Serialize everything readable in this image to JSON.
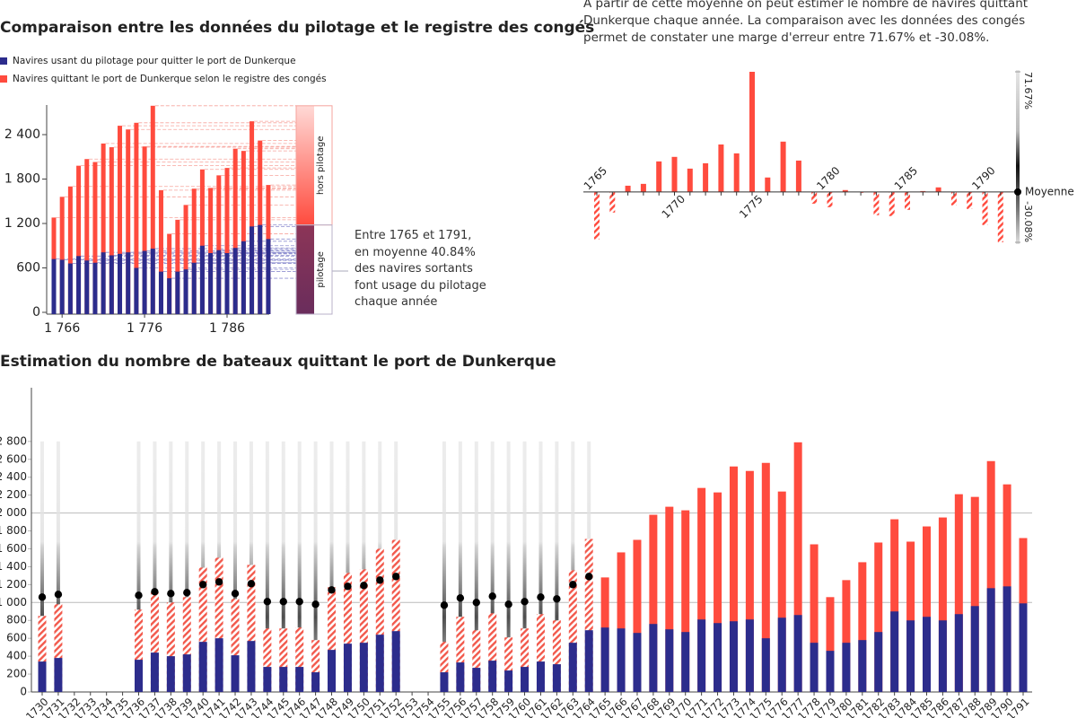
{
  "chart_data": [
    {
      "type": "bar",
      "title": "Comparaison entre les données du pilotage et le registre des congés",
      "categories": [
        null,
        "1 766",
        null,
        null,
        null,
        null,
        null,
        null,
        null,
        null,
        null,
        "1 776",
        null,
        null,
        null,
        null,
        null,
        null,
        null,
        null,
        null,
        "1 786",
        null,
        null,
        null,
        null,
        null
      ],
      "series": [
        {
          "name": "Navires usant du pilotage pour quitter le port de Dunkerque",
          "color": "#2c2c8c",
          "values": [
            720,
            710,
            660,
            760,
            700,
            670,
            810,
            770,
            790,
            810,
            600,
            830,
            860,
            550,
            460,
            550,
            580,
            670,
            900,
            800,
            840,
            800,
            870,
            960,
            1160,
            1180,
            990
          ]
        },
        {
          "name": "Navires quittant le port de Dunkerque selon le registre des congés",
          "color": "#ff4b3e",
          "values": [
            1280,
            1560,
            1700,
            1980,
            2070,
            2030,
            2280,
            2230,
            2520,
            2470,
            2560,
            2240,
            2790,
            1650,
            1060,
            1250,
            1450,
            1670,
            1930,
            1680,
            1850,
            1950,
            2210,
            2180,
            2580,
            2320,
            1720
          ]
        }
      ],
      "ylim": [
        0,
        2800
      ],
      "yticks": [
        0,
        600,
        {
          "value": 1200,
          "label": "1 200"
        },
        {
          "value": 1800,
          "label": "1 800"
        },
        {
          "value": 2400,
          "label": "2 400"
        }
      ],
      "bracket_labels": [
        "hors pilotage",
        "pilotage"
      ],
      "annotation": "Entre 1765 et 1791, en moyenne 40.84% des navires sortants font usage du pilotage chaque année"
    },
    {
      "type": "deviation",
      "annotation": "À partir de cette moyenne on peut estimer le nombre de navires quittant Dunkerque chaque année. La comparaison avec les données des congés permet de constater une marge d'erreur entre 71.67% et -30.08%.",
      "categories": [
        "1765",
        null,
        null,
        null,
        null,
        "1770",
        null,
        null,
        null,
        null,
        "1775",
        null,
        null,
        null,
        null,
        "1780",
        null,
        null,
        null,
        null,
        "1785",
        null,
        null,
        null,
        null,
        "1790",
        null
      ],
      "values": [
        -28.3,
        -12.3,
        3.7,
        4.8,
        18.2,
        20.9,
        13.9,
        17.1,
        28.3,
        23,
        71.67,
        8.6,
        30,
        18.7,
        -7,
        -9.1,
        1.1,
        -0.5,
        -13.9,
        -14.4,
        -10.7,
        0.5,
        2.7,
        -8,
        -10.2,
        -19.8,
        -30.08
      ],
      "color": "#ff4b3e",
      "negative_style": "hatched",
      "ylim": [
        -30.08,
        71.67
      ],
      "yticks": [
        {
          "value": 71.67,
          "label": "71.67%"
        },
        {
          "value": 0,
          "label": "Moyenne"
        },
        {
          "value": -30.08,
          "label": "-30.08%"
        }
      ]
    },
    {
      "type": "bar",
      "title": "Estimation du nombre de bateaux quittant le port de Dunkerque",
      "categories": [
        "1730",
        "1731",
        "1732",
        "1733",
        "1734",
        "1735",
        "1736",
        "1737",
        "1738",
        "1739",
        "1740",
        "1741",
        "1742",
        "1743",
        "1744",
        "1745",
        "1746",
        "1747",
        "1748",
        "1749",
        "1750",
        "1751",
        "1752",
        "1753",
        "1754",
        "1755",
        "1756",
        "1757",
        "1758",
        "1759",
        "1760",
        "1761",
        "1762",
        "1763",
        "1764",
        "1765",
        "1766",
        "1767",
        "1768",
        "1769",
        "1770",
        "1771",
        "1772",
        "1773",
        "1774",
        "1775",
        "1776",
        "1777",
        "1778",
        "1779",
        "1780",
        "1781",
        "1782",
        "1783",
        "1784",
        "1785",
        "1786",
        "1787",
        "1788",
        "1789",
        "1790",
        "1791"
      ],
      "series": [
        {
          "style": "hatched",
          "color": "#f2594c",
          "values": [
            850,
            980,
            null,
            null,
            null,
            null,
            920,
            1110,
            1000,
            1060,
            1390,
            1500,
            1040,
            1420,
            710,
            710,
            720,
            580,
            1170,
            1330,
            1370,
            1600,
            1700,
            null,
            null,
            560,
            840,
            690,
            880,
            610,
            710,
            870,
            800,
            1360,
            1710,
            null,
            null,
            null,
            null,
            null,
            null,
            null,
            null,
            null,
            null,
            null,
            null,
            null,
            null,
            null,
            null,
            null,
            null,
            null,
            null,
            null,
            null,
            null,
            null,
            null,
            null,
            null
          ]
        },
        {
          "style": "bar",
          "color": "#ff4b3e",
          "values": [
            null,
            null,
            null,
            null,
            null,
            null,
            null,
            null,
            null,
            null,
            null,
            null,
            null,
            null,
            null,
            null,
            null,
            null,
            null,
            null,
            null,
            null,
            null,
            null,
            null,
            null,
            null,
            null,
            null,
            null,
            null,
            null,
            null,
            null,
            null,
            1280,
            1560,
            1700,
            1980,
            2070,
            2030,
            2280,
            2230,
            2520,
            2470,
            2560,
            2240,
            2790,
            1650,
            1060,
            1250,
            1450,
            1670,
            1930,
            1680,
            1850,
            1950,
            2210,
            2180,
            2580,
            2320,
            1720
          ]
        },
        {
          "style": "bar",
          "color": "#2c2c8c",
          "values": [
            340,
            380,
            null,
            null,
            null,
            null,
            360,
            440,
            400,
            420,
            560,
            600,
            410,
            570,
            280,
            280,
            280,
            220,
            470,
            540,
            550,
            640,
            680,
            null,
            null,
            220,
            330,
            270,
            350,
            240,
            280,
            340,
            310,
            550,
            690,
            720,
            710,
            660,
            760,
            700,
            670,
            810,
            770,
            790,
            810,
            600,
            830,
            860,
            550,
            460,
            550,
            580,
            670,
            900,
            800,
            840,
            800,
            870,
            960,
            1160,
            1180,
            990
          ]
        },
        {
          "style": "dot",
          "color": "#000000",
          "values": [
            1060,
            1090,
            null,
            null,
            null,
            null,
            1080,
            1120,
            1100,
            1110,
            1200,
            1230,
            1100,
            1210,
            1010,
            1010,
            1010,
            980,
            1140,
            1180,
            1190,
            1250,
            1290,
            null,
            null,
            970,
            1050,
            1000,
            1070,
            980,
            1010,
            1060,
            1040,
            1200,
            1290,
            null,
            null,
            null,
            null,
            null,
            null,
            null,
            null,
            null,
            null,
            null,
            null,
            null,
            null,
            null,
            null,
            null,
            null,
            null,
            null,
            null,
            null,
            null,
            null,
            null,
            null,
            null
          ]
        }
      ],
      "ylim": [
        0,
        3400
      ],
      "yticks": [
        0,
        200,
        400,
        600,
        800,
        {
          "value": 1000,
          "label": "1 000"
        },
        {
          "value": 1200,
          "label": "1 200"
        },
        {
          "value": 1400,
          "label": "1 400"
        },
        {
          "value": 1600,
          "label": "1 600"
        },
        {
          "value": 1800,
          "label": "1 800"
        },
        {
          "value": 2000,
          "label": "2 000"
        },
        {
          "value": 2200,
          "label": "2 200"
        },
        {
          "value": 2400,
          "label": "2 400"
        },
        {
          "value": 2600,
          "label": "2 600"
        },
        {
          "value": 2800,
          "label": "2 800"
        }
      ]
    }
  ]
}
